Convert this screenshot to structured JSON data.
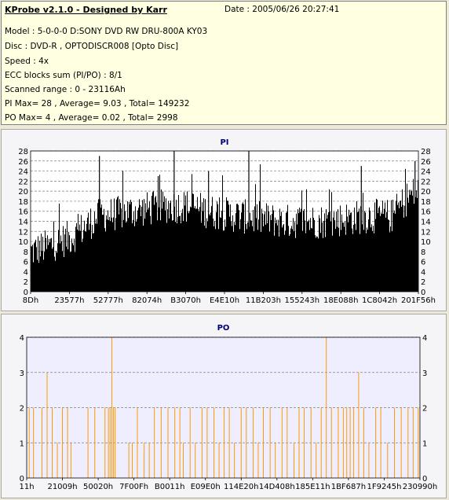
{
  "info": {
    "title": "KProbe v2.1.0 - Designed by Karr",
    "date": "Date : 2005/06/26 20:27:41",
    "lines": [
      "Model : 5-0-0-0 D:SONY    DVD RW DRU-800A  KY03",
      "Disc : DVD-R , OPTODISCR008 [Opto Disc]",
      "Speed : 4x",
      "ECC blocks sum (PI/PO) : 8/1",
      "Scanned range : 0 - 23116Ah",
      "PI Max= 28 , Average= 9.03 , Total= 149232",
      "PO Max= 4 , Average= 0.02 , Total= 2998"
    ]
  },
  "chart_data": [
    {
      "type": "bar",
      "title": "PI",
      "ylim": [
        0,
        28
      ],
      "yticks": [
        0,
        2,
        4,
        6,
        8,
        10,
        12,
        14,
        16,
        18,
        20,
        22,
        24,
        26,
        28
      ],
      "xticks": [
        "8Dh",
        "23577h",
        "52777h",
        "82074h",
        "B3070h",
        "E4E10h",
        "11B203h",
        "155243h",
        "18E088h",
        "1C8042h",
        "201F56h"
      ],
      "x_range": [
        0,
        231000
      ],
      "colors": {
        "bar": "#000000",
        "background": "#ffffff",
        "grid": "#7f7f7f"
      },
      "profile": [
        {
          "x": 0,
          "y": 8
        },
        {
          "x": 10000,
          "y": 9
        },
        {
          "x": 25000,
          "y": 11
        },
        {
          "x": 40000,
          "y": 15
        },
        {
          "x": 60000,
          "y": 16
        },
        {
          "x": 80000,
          "y": 17
        },
        {
          "x": 95000,
          "y": 17
        },
        {
          "x": 105000,
          "y": 16
        },
        {
          "x": 125000,
          "y": 15
        },
        {
          "x": 150000,
          "y": 14
        },
        {
          "x": 175000,
          "y": 14
        },
        {
          "x": 200000,
          "y": 15
        },
        {
          "x": 215000,
          "y": 15
        },
        {
          "x": 225000,
          "y": 19
        },
        {
          "x": 231000,
          "y": 20
        }
      ],
      "peaks": [
        {
          "x": 85500,
          "y": 28
        },
        {
          "x": 130000,
          "y": 28
        },
        {
          "x": 41000,
          "y": 27
        },
        {
          "x": 197000,
          "y": 25
        },
        {
          "x": 229000,
          "y": 26
        },
        {
          "x": 106000,
          "y": 24
        },
        {
          "x": 76000,
          "y": 23
        }
      ]
    },
    {
      "type": "bar",
      "title": "PO",
      "ylim": [
        0,
        4
      ],
      "yticks": [
        0,
        1,
        2,
        3,
        4
      ],
      "xticks": [
        "11h",
        "21009h",
        "50020h",
        "7F00Fh",
        "B0011h",
        "E09E0h",
        "114E20h",
        "14D408h",
        "185E11h",
        "1BF687h",
        "1F9245h",
        "230990h"
      ],
      "x_range": [
        0,
        231000
      ],
      "colors": {
        "bar": "#ff9900",
        "background": "#eeeeff",
        "grid": "#7f7f7f"
      },
      "spikes": [
        {
          "x": 1500,
          "y": 2
        },
        {
          "x": 4000,
          "y": 2
        },
        {
          "x": 9000,
          "y": 2
        },
        {
          "x": 12000,
          "y": 3
        },
        {
          "x": 15000,
          "y": 2
        },
        {
          "x": 18000,
          "y": 1
        },
        {
          "x": 21000,
          "y": 2
        },
        {
          "x": 24000,
          "y": 2
        },
        {
          "x": 26000,
          "y": 1
        },
        {
          "x": 36000,
          "y": 2
        },
        {
          "x": 40000,
          "y": 2
        },
        {
          "x": 46000,
          "y": 2
        },
        {
          "x": 48000,
          "y": 2
        },
        {
          "x": 49000,
          "y": 2
        },
        {
          "x": 50000,
          "y": 4
        },
        {
          "x": 51000,
          "y": 2
        },
        {
          "x": 52000,
          "y": 2
        },
        {
          "x": 60000,
          "y": 1
        },
        {
          "x": 62000,
          "y": 1
        },
        {
          "x": 65000,
          "y": 2
        },
        {
          "x": 69000,
          "y": 1
        },
        {
          "x": 72000,
          "y": 1
        },
        {
          "x": 75000,
          "y": 2
        },
        {
          "x": 79000,
          "y": 2
        },
        {
          "x": 83000,
          "y": 2
        },
        {
          "x": 87000,
          "y": 2
        },
        {
          "x": 90000,
          "y": 2
        },
        {
          "x": 92000,
          "y": 1
        },
        {
          "x": 96000,
          "y": 2
        },
        {
          "x": 99000,
          "y": 1
        },
        {
          "x": 103000,
          "y": 2
        },
        {
          "x": 106000,
          "y": 2
        },
        {
          "x": 110000,
          "y": 2
        },
        {
          "x": 113000,
          "y": 1
        },
        {
          "x": 116000,
          "y": 2
        },
        {
          "x": 119000,
          "y": 2
        },
        {
          "x": 122000,
          "y": 1
        },
        {
          "x": 126000,
          "y": 2
        },
        {
          "x": 129000,
          "y": 2
        },
        {
          "x": 133000,
          "y": 2
        },
        {
          "x": 136000,
          "y": 1
        },
        {
          "x": 139000,
          "y": 2
        },
        {
          "x": 143000,
          "y": 2
        },
        {
          "x": 146000,
          "y": 1
        },
        {
          "x": 150000,
          "y": 2
        },
        {
          "x": 153000,
          "y": 2
        },
        {
          "x": 157000,
          "y": 1
        },
        {
          "x": 160000,
          "y": 2
        },
        {
          "x": 163000,
          "y": 2
        },
        {
          "x": 167000,
          "y": 2
        },
        {
          "x": 170000,
          "y": 1
        },
        {
          "x": 173000,
          "y": 2
        },
        {
          "x": 176000,
          "y": 4
        },
        {
          "x": 179000,
          "y": 2
        },
        {
          "x": 183000,
          "y": 2
        },
        {
          "x": 186000,
          "y": 2
        },
        {
          "x": 188000,
          "y": 2
        },
        {
          "x": 190000,
          "y": 2
        },
        {
          "x": 192000,
          "y": 2
        },
        {
          "x": 195000,
          "y": 3
        },
        {
          "x": 198000,
          "y": 2
        },
        {
          "x": 201000,
          "y": 1
        },
        {
          "x": 205000,
          "y": 2
        },
        {
          "x": 208000,
          "y": 2
        },
        {
          "x": 212000,
          "y": 1
        },
        {
          "x": 216000,
          "y": 2
        },
        {
          "x": 220000,
          "y": 2
        },
        {
          "x": 224000,
          "y": 2
        },
        {
          "x": 227000,
          "y": 2
        },
        {
          "x": 230000,
          "y": 2
        }
      ]
    }
  ]
}
